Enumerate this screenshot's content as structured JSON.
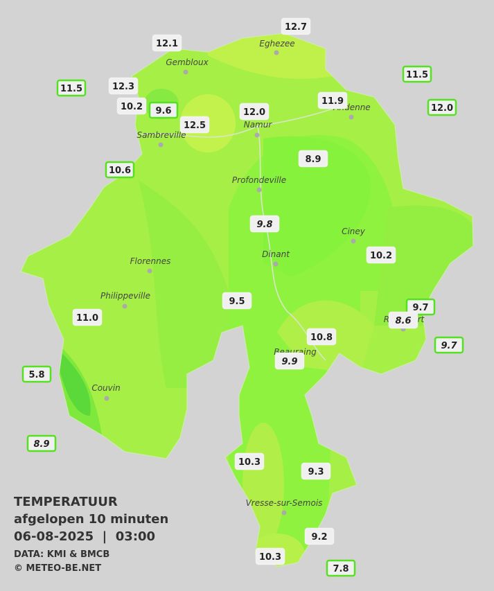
{
  "title": "TEMPERATUUR",
  "subtitle": "afgelopen 10 minuten",
  "datetime": "06-08-2025  |  03:00",
  "source": "DATA: KMI & BMCB",
  "copyright": "© METEO-BE.NET",
  "towns": [
    {
      "label": "Eghezee"
    },
    {
      "label": "Gembloux"
    },
    {
      "label": "Andenne"
    },
    {
      "label": "Sambreville"
    },
    {
      "label": "Namur"
    },
    {
      "label": "Profondeville"
    },
    {
      "label": "Ciney"
    },
    {
      "label": "Florennes"
    },
    {
      "label": "Dinant"
    },
    {
      "label": "Philippeville"
    },
    {
      "label": "Rochefort"
    },
    {
      "label": "Beauraing"
    },
    {
      "label": "Couvin"
    },
    {
      "label": "Vresse-sur-Semois"
    }
  ],
  "stations": [
    {
      "label": "12.7"
    },
    {
      "label": "12.1"
    },
    {
      "label": "11.5"
    },
    {
      "label": "12.3"
    },
    {
      "label": "10.2"
    },
    {
      "label": "9.6"
    },
    {
      "label": "12.5"
    },
    {
      "label": "12.0"
    },
    {
      "label": "11.9"
    },
    {
      "label": "11.5"
    },
    {
      "label": "12.0"
    },
    {
      "label": "10.6"
    },
    {
      "label": "8.9"
    },
    {
      "label": "9.8"
    },
    {
      "label": "10.2"
    },
    {
      "label": "9.5"
    },
    {
      "label": "11.0"
    },
    {
      "label": "9.7"
    },
    {
      "label": "8.6"
    },
    {
      "label": "9.7"
    },
    {
      "label": "10.8"
    },
    {
      "label": "9.9"
    },
    {
      "label": "5.8"
    },
    {
      "label": "8.9"
    },
    {
      "label": "10.3"
    },
    {
      "label": "9.3"
    },
    {
      "label": "9.2"
    },
    {
      "label": "10.3"
    },
    {
      "label": "7.8"
    }
  ]
}
